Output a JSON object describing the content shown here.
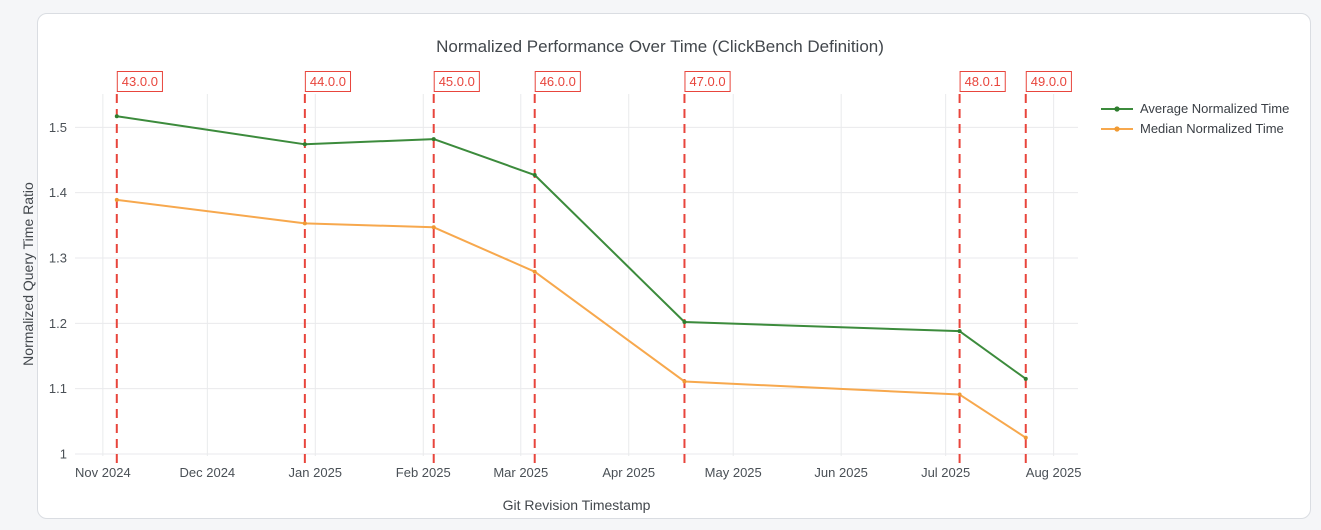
{
  "chart_data": {
    "type": "line",
    "title": "Normalized Performance Over Time (ClickBench Definition)",
    "xlabel": "Git Revision Timestamp",
    "ylabel": "Normalized Query Time Ratio",
    "grid": true,
    "legend_position": "right-top",
    "xlim": [
      "2024-10-24",
      "2025-08-08"
    ],
    "ylim": [
      1,
      1.551
    ],
    "x_dates": [
      "2024-11-05",
      "2024-12-29",
      "2025-02-04",
      "2025-03-05",
      "2025-04-17",
      "2025-07-05",
      "2025-07-24"
    ],
    "series": [
      {
        "name": "Average Normalized Time",
        "color": "#3c8b3c",
        "marker_color": "#2f7d2f",
        "values": [
          1.517,
          1.474,
          1.482,
          1.427,
          1.202,
          1.188,
          1.115
        ]
      },
      {
        "name": "Median Normalized Time",
        "color": "#f7a84d",
        "marker_color": "#f09a33",
        "values": [
          1.389,
          1.353,
          1.347,
          1.279,
          1.111,
          1.091,
          1.025
        ]
      }
    ],
    "annotations": [
      {
        "label": "43.0.0",
        "date": "2024-11-05"
      },
      {
        "label": "44.0.0",
        "date": "2024-12-29"
      },
      {
        "label": "45.0.0",
        "date": "2025-02-04"
      },
      {
        "label": "46.0.0",
        "date": "2025-03-05"
      },
      {
        "label": "47.0.0",
        "date": "2025-04-17"
      },
      {
        "label": "48.0.1",
        "date": "2025-07-05"
      },
      {
        "label": "49.0.0",
        "date": "2025-07-24"
      }
    ],
    "x_ticks": [
      {
        "label": "Nov 2024",
        "date": "2024-11-01"
      },
      {
        "label": "Dec 2024",
        "date": "2024-12-01"
      },
      {
        "label": "Jan 2025",
        "date": "2025-01-01"
      },
      {
        "label": "Feb 2025",
        "date": "2025-02-01"
      },
      {
        "label": "Mar 2025",
        "date": "2025-03-01"
      },
      {
        "label": "Apr 2025",
        "date": "2025-04-01"
      },
      {
        "label": "May 2025",
        "date": "2025-05-01"
      },
      {
        "label": "Jun 2025",
        "date": "2025-06-01"
      },
      {
        "label": "Jul 2025",
        "date": "2025-07-01"
      },
      {
        "label": "Aug 2025",
        "date": "2025-08-01"
      }
    ],
    "y_ticks": [
      {
        "label": "1",
        "value": 1.0
      },
      {
        "label": "1.1",
        "value": 1.1
      },
      {
        "label": "1.2",
        "value": 1.2
      },
      {
        "label": "1.3",
        "value": 1.3
      },
      {
        "label": "1.4",
        "value": 1.4
      },
      {
        "label": "1.5",
        "value": 1.5
      }
    ],
    "colors": {
      "annotation": "#e8453c",
      "grid": "#e9eaec",
      "axis_text": "#4a5056",
      "title_text": "#42474c",
      "page_background": "#f5f6f8",
      "card_background": "#ffffff",
      "card_border": "#dadde2"
    }
  }
}
